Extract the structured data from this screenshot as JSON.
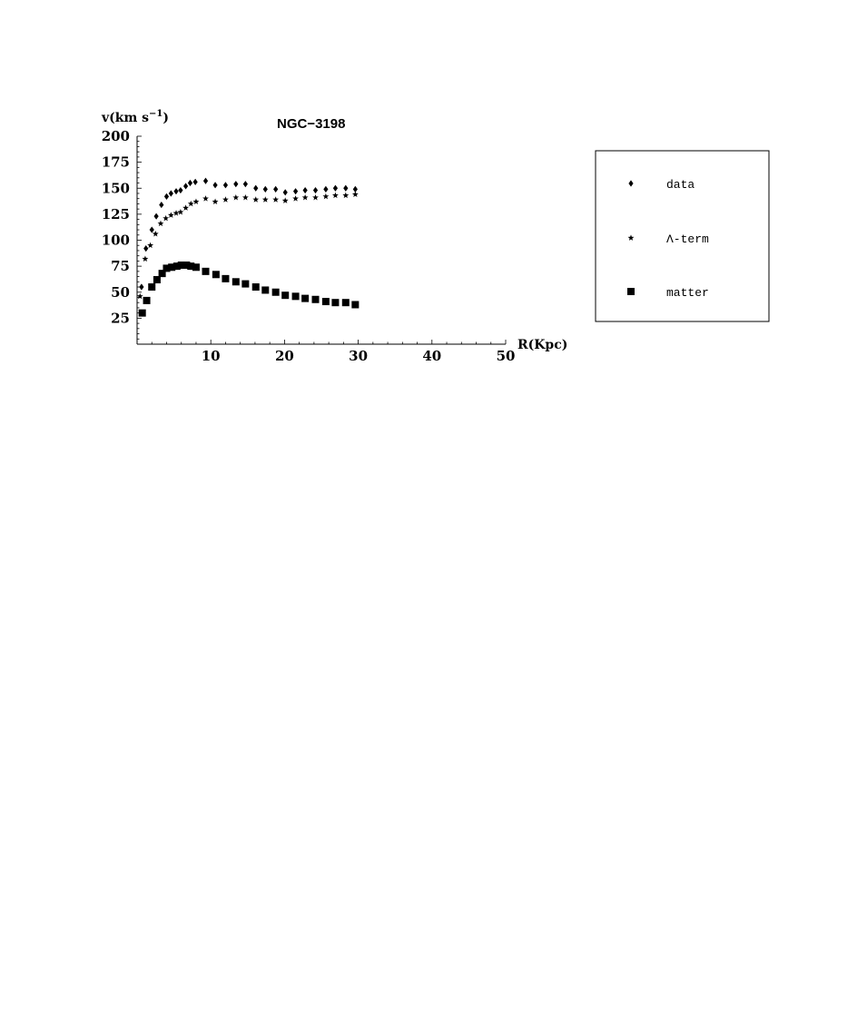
{
  "chart_data": {
    "type": "scatter",
    "title": "NGC−3198",
    "ylabel_main": "v(km s",
    "ylabel_sup": "−1",
    "ylabel_close": ")",
    "xlabel": "R(Kpc)",
    "xlim": [
      0,
      50
    ],
    "ylim": [
      0,
      200
    ],
    "xticks": [
      10,
      20,
      30,
      40,
      50
    ],
    "yticks": [
      25,
      50,
      75,
      100,
      125,
      150,
      175,
      200
    ],
    "grid": false,
    "legend_position": "right",
    "series": [
      {
        "name": "data",
        "marker": "diamond",
        "x": [
          0.6,
          1.2,
          2.0,
          2.6,
          3.3,
          4.0,
          4.6,
          5.3,
          5.9,
          6.6,
          7.2,
          7.9,
          9.3,
          10.6,
          12.0,
          13.4,
          14.7,
          16.1,
          17.4,
          18.8,
          20.1,
          21.5,
          22.8,
          24.2,
          25.6,
          26.9,
          28.3,
          29.6
        ],
        "y": [
          55,
          92,
          110,
          123,
          134,
          142,
          145,
          147,
          148,
          152,
          155,
          156,
          157,
          153,
          153,
          154,
          154,
          150,
          149,
          149,
          146,
          147,
          148,
          148,
          149,
          150,
          150,
          149
        ]
      },
      {
        "name": "Λ-term",
        "marker": "star",
        "x": [
          0.4,
          1.1,
          1.8,
          2.5,
          3.2,
          3.9,
          4.6,
          5.3,
          5.9,
          6.6,
          7.3,
          8.0,
          9.3,
          10.6,
          12.0,
          13.4,
          14.7,
          16.1,
          17.4,
          18.8,
          20.1,
          21.5,
          22.8,
          24.2,
          25.6,
          26.9,
          28.3,
          29.6
        ],
        "y": [
          46,
          82,
          95,
          106,
          116,
          121,
          124,
          126,
          127,
          131,
          135,
          137,
          140,
          137,
          139,
          141,
          141,
          139,
          139,
          139,
          138,
          140,
          141,
          141,
          142,
          143,
          143,
          144
        ]
      },
      {
        "name": "matter",
        "marker": "square",
        "x": [
          0.7,
          1.3,
          2.0,
          2.7,
          3.4,
          4.0,
          4.7,
          5.4,
          6.0,
          6.7,
          7.3,
          8.0,
          9.3,
          10.7,
          12.0,
          13.4,
          14.7,
          16.1,
          17.4,
          18.8,
          20.1,
          21.5,
          22.8,
          24.2,
          25.6,
          26.9,
          28.3,
          29.6
        ],
        "y": [
          30,
          42,
          55,
          62,
          68,
          73,
          74,
          75,
          76,
          76,
          75,
          74,
          70,
          67,
          63,
          60,
          58,
          55,
          52,
          50,
          47,
          46,
          44,
          43,
          41,
          40,
          40,
          38
        ]
      }
    ]
  }
}
